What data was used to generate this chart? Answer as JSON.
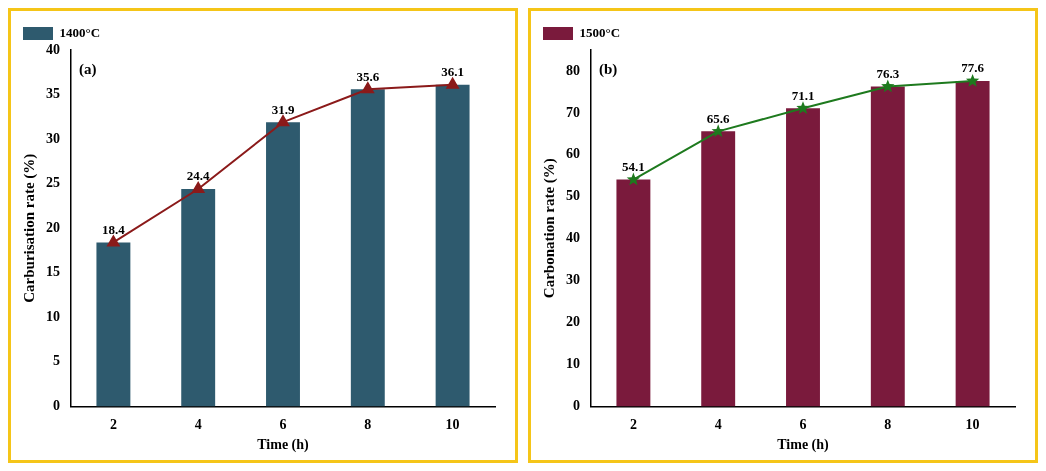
{
  "chart_data": [
    {
      "type": "bar",
      "annotations": [
        "(a)"
      ],
      "xlabel": "Time (h)",
      "ylabel": "Carburisation rate (%)",
      "categories": [
        "2",
        "4",
        "6",
        "8",
        "10"
      ],
      "series": [
        {
          "name": "1400°C",
          "color": "#2e5a6e",
          "values": [
            18.4,
            24.4,
            31.9,
            35.6,
            36.1
          ]
        },
        {
          "type": "line",
          "color": "#8b1a1a",
          "marker": "triangle",
          "values": [
            18.4,
            24.4,
            31.9,
            35.6,
            36.1
          ],
          "value_labels": [
            "18.4",
            "24.4",
            "31.9",
            "35.6",
            "36.1"
          ]
        }
      ],
      "ylim": [
        0,
        40
      ],
      "yticks": [
        0,
        5,
        10,
        15,
        20,
        25,
        30,
        35,
        40
      ],
      "grid": false,
      "legend": "top left"
    },
    {
      "type": "bar",
      "annotations": [
        "(b)"
      ],
      "xlabel": "Time (h)",
      "ylabel": "Carbonation rate (%)",
      "categories": [
        "2",
        "4",
        "6",
        "8",
        "10"
      ],
      "series": [
        {
          "name": "1500°C",
          "color": "#7a1a3c",
          "values": [
            54.1,
            65.6,
            71.1,
            76.3,
            77.6
          ]
        },
        {
          "type": "line",
          "color": "#1e7a1e",
          "marker": "star",
          "values": [
            54.1,
            65.6,
            71.1,
            76.3,
            77.6
          ],
          "value_labels": [
            "54.1",
            "65.6",
            "71.1",
            "76.3",
            "77.6"
          ]
        }
      ],
      "ylim": [
        0,
        85
      ],
      "yticks": [
        0,
        10,
        20,
        30,
        40,
        50,
        60,
        70,
        80
      ],
      "grid": false,
      "legend": "top left"
    }
  ]
}
